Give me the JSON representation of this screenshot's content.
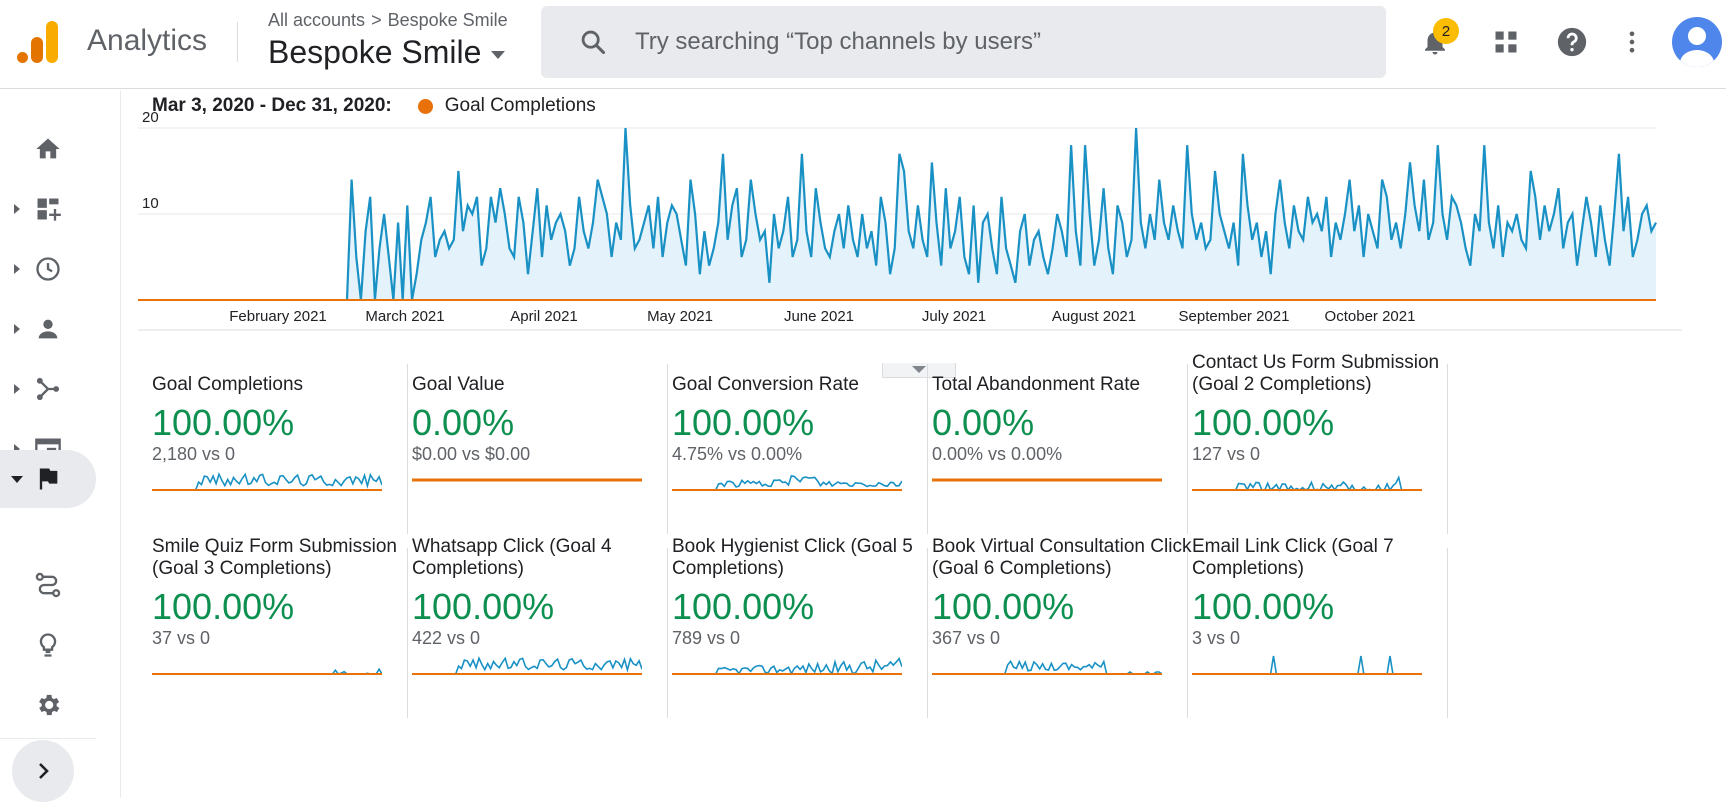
{
  "app": {
    "brand": "Analytics",
    "breadcrumb": {
      "account": "All accounts",
      "separator": ">",
      "property_small": "Bespoke Smile"
    },
    "property_name": "Bespoke Smile",
    "search_placeholder": "Try searching “Top channels by users”",
    "notifications_count": "2",
    "colors": {
      "accent_line": "#1a91c4",
      "fill": "#e3f2fb",
      "comparison": "#e8710a",
      "positive": "#0d904f"
    }
  },
  "sidebar": {
    "items": [
      "home-icon",
      "customization-icon",
      "realtime-icon",
      "audience-icon",
      "acquisition-icon",
      "behavior-icon",
      "conversions-icon"
    ],
    "bottom": [
      "attribution-icon",
      "discover-icon",
      "admin-icon"
    ]
  },
  "chart": {
    "range_label": "Mar 3, 2020 - Dec 31, 2020:",
    "legend_label": "Goal Completions",
    "y_ticks": [
      "20",
      "10"
    ],
    "x_ticks": [
      "February 2021",
      "March 2021",
      "April 2021",
      "May 2021",
      "June 2021",
      "July 2021",
      "August 2021",
      "September 2021",
      "October 2021"
    ]
  },
  "chart_data": {
    "type": "area",
    "title": "",
    "ylim": [
      0,
      20
    ],
    "series": [
      {
        "name": "Goal Completions",
        "values": [
          0,
          14,
          5,
          0,
          8,
          12,
          0,
          6,
          10,
          5,
          0,
          9,
          0,
          11,
          0,
          3,
          7,
          9,
          12,
          5,
          7,
          8,
          6,
          7,
          15,
          8,
          11,
          10,
          12,
          4,
          6,
          12,
          9,
          13,
          10,
          6,
          5,
          12,
          9,
          3,
          8,
          13,
          5,
          11,
          7,
          9,
          10,
          8,
          4,
          6,
          12,
          8,
          6,
          9,
          14,
          12,
          10,
          5,
          9,
          7,
          20,
          11,
          6,
          7,
          9,
          11,
          6,
          12,
          5,
          9,
          11,
          10,
          7,
          4,
          14,
          10,
          3,
          8,
          4,
          6,
          9,
          17,
          7,
          11,
          13,
          5,
          7,
          14,
          10,
          7,
          8,
          2,
          10,
          6,
          8,
          12,
          5,
          7,
          17,
          8,
          5,
          13,
          9,
          6,
          5,
          8,
          10,
          6,
          11,
          7,
          5,
          10,
          6,
          8,
          4,
          12,
          9,
          3,
          6,
          17,
          15,
          8,
          6,
          11,
          7,
          5,
          16,
          9,
          4,
          13,
          6,
          8,
          12,
          5,
          3,
          11,
          2,
          9,
          10,
          6,
          3,
          12,
          6,
          4,
          2,
          8,
          10,
          4,
          7,
          8,
          5,
          3,
          6,
          10,
          8,
          5,
          18,
          8,
          4,
          18,
          10,
          4,
          7,
          13,
          6,
          3,
          11,
          9,
          5,
          7,
          20,
          9,
          6,
          10,
          7,
          14,
          9,
          7,
          11,
          8,
          6,
          18,
          10,
          7,
          9,
          6,
          7,
          15,
          10,
          8,
          6,
          9,
          4,
          17,
          11,
          7,
          9,
          5,
          8,
          3,
          10,
          14,
          9,
          6,
          11,
          8,
          7,
          12,
          9,
          10,
          8,
          12,
          5,
          9,
          7,
          10,
          14,
          8,
          11,
          5,
          10,
          8,
          6,
          14,
          12,
          7,
          9,
          6,
          10,
          16,
          11,
          8,
          14,
          7,
          9,
          18,
          10,
          7,
          12,
          11,
          9,
          6,
          4,
          10,
          8,
          18,
          9,
          6,
          11,
          5,
          9,
          8,
          10,
          7,
          6,
          15,
          12,
          7,
          11,
          8,
          10,
          13,
          6,
          9,
          10,
          4,
          8,
          12,
          9,
          5,
          11,
          7,
          4,
          10,
          17,
          8,
          12,
          5,
          7,
          10,
          11,
          8,
          9
        ]
      }
    ]
  },
  "metrics": [
    {
      "name": "Goal Completions",
      "value": "100.00%",
      "compare": "2,180 vs 0",
      "spark": "busy"
    },
    {
      "name": "Goal Value",
      "value": "0.00%",
      "compare": "$0.00 vs $0.00",
      "spark": "flat"
    },
    {
      "name": "Goal Conversion Rate",
      "value": "100.00%",
      "compare": "4.75% vs 0.00%",
      "spark": "busy_low"
    },
    {
      "name": "Total Abandonment Rate",
      "value": "0.00%",
      "compare": "0.00% vs 0.00%",
      "spark": "flat"
    },
    {
      "name": "Contact Us Form Submission (Goal 2 Completions)",
      "value": "100.00%",
      "compare": "127 vs 0",
      "spark": "sparse"
    },
    {
      "name": "Smile Quiz Form Submission (Goal 3 Completions)",
      "value": "100.00%",
      "compare": "37 vs 0",
      "spark": "rare"
    },
    {
      "name": "Whatsapp Click (Goal 4 Completions)",
      "value": "100.00%",
      "compare": "422 vs 0",
      "spark": "busy"
    },
    {
      "name": "Book Hygienist Click (Goal 5 Completions)",
      "value": "100.00%",
      "compare": "789 vs 0",
      "spark": "rising"
    },
    {
      "name": "Book Virtual Consultation Click (Goal 6 Completions)",
      "value": "100.00%",
      "compare": "367 vs 0",
      "spark": "early"
    },
    {
      "name": "Email Link Click (Goal 7 Completions)",
      "value": "100.00%",
      "compare": "3 vs 0",
      "spark": "three"
    }
  ]
}
